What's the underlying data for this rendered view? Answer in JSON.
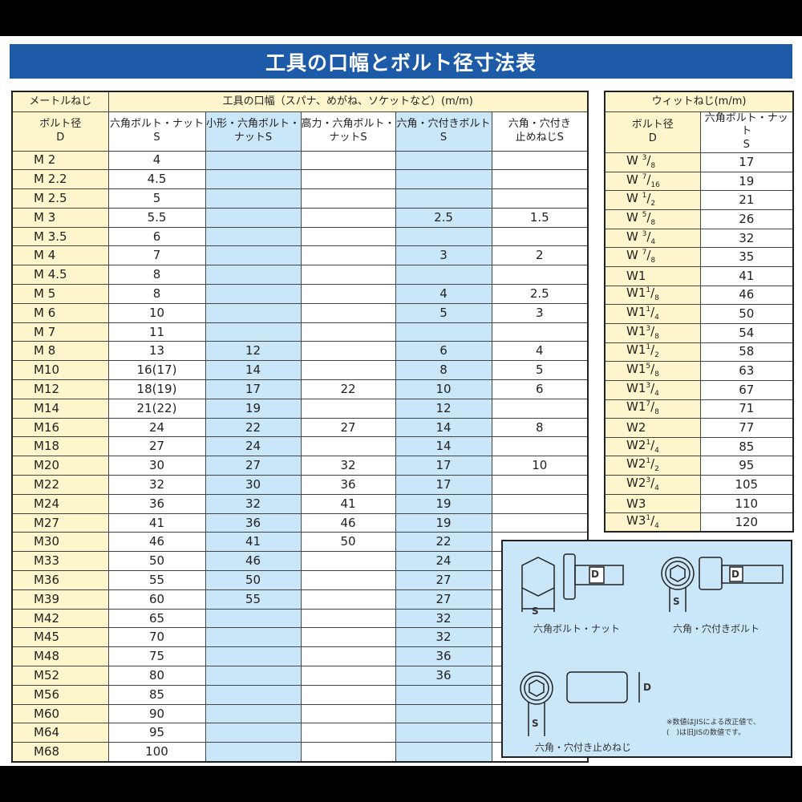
{
  "title": "工具の口幅とボルト径寸法表",
  "metric": {
    "header_group": "メートルねじ",
    "header_span": "工具の口幅（スパナ、めがね、ソケットなど）(m/m)",
    "columns": [
      "ボルト径\nD",
      "六角ボルト・ナット\nS",
      "小形・六角ボルト・\nナットS",
      "高力・六角ボルト・\nナットS",
      "六角・穴付きボルト\nS",
      "六角・穴付き\n止めねじS"
    ],
    "rows": [
      [
        "M 2",
        "4",
        "",
        "",
        "",
        ""
      ],
      [
        "M 2.2",
        "4.5",
        "",
        "",
        "",
        ""
      ],
      [
        "M 2.5",
        "5",
        "",
        "",
        "",
        ""
      ],
      [
        "M 3",
        "5.5",
        "",
        "",
        "2.5",
        "1.5"
      ],
      [
        "M 3.5",
        "6",
        "",
        "",
        "",
        ""
      ],
      [
        "M 4",
        "7",
        "",
        "",
        "3",
        "2"
      ],
      [
        "M 4.5",
        "8",
        "",
        "",
        "",
        ""
      ],
      [
        "M 5",
        "8",
        "",
        "",
        "4",
        "2.5"
      ],
      [
        "M 6",
        "10",
        "",
        "",
        "5",
        "3"
      ],
      [
        "M 7",
        "11",
        "",
        "",
        "",
        ""
      ],
      [
        "M 8",
        "13",
        "12",
        "",
        "6",
        "4"
      ],
      [
        "M10",
        "16(17)",
        "14",
        "",
        "8",
        "5"
      ],
      [
        "M12",
        "18(19)",
        "17",
        "22",
        "10",
        "6"
      ],
      [
        "M14",
        "21(22)",
        "19",
        "",
        "12",
        ""
      ],
      [
        "M16",
        "24",
        "22",
        "27",
        "14",
        "8"
      ],
      [
        "M18",
        "27",
        "24",
        "",
        "14",
        ""
      ],
      [
        "M20",
        "30",
        "27",
        "32",
        "17",
        "10"
      ],
      [
        "M22",
        "32",
        "30",
        "36",
        "17",
        ""
      ],
      [
        "M24",
        "36",
        "32",
        "41",
        "19",
        ""
      ],
      [
        "M27",
        "41",
        "36",
        "46",
        "19",
        ""
      ],
      [
        "M30",
        "46",
        "41",
        "50",
        "22",
        ""
      ],
      [
        "M33",
        "50",
        "46",
        "",
        "24",
        ""
      ],
      [
        "M36",
        "55",
        "50",
        "",
        "27",
        ""
      ],
      [
        "M39",
        "60",
        "55",
        "",
        "27",
        ""
      ],
      [
        "M42",
        "65",
        "",
        "",
        "32",
        ""
      ],
      [
        "M45",
        "70",
        "",
        "",
        "32",
        ""
      ],
      [
        "M48",
        "75",
        "",
        "",
        "36",
        ""
      ],
      [
        "M52",
        "80",
        "",
        "",
        "36",
        ""
      ],
      [
        "M56",
        "85",
        "",
        "",
        "",
        ""
      ],
      [
        "M60",
        "90",
        "",
        "",
        "",
        ""
      ],
      [
        "M64",
        "95",
        "",
        "",
        "",
        ""
      ],
      [
        "M68",
        "100",
        "",
        "",
        "",
        ""
      ]
    ]
  },
  "whitworth": {
    "header": "ウィットねじ(m/m)",
    "columns": [
      "ボルト径\nD",
      "六角ボルト・ナット\nS"
    ],
    "rows": [
      {
        "p": "W ",
        "n": "3",
        "d": "8",
        "s": "17"
      },
      {
        "p": "W ",
        "n": "7",
        "d": "16",
        "s": "19"
      },
      {
        "p": "W ",
        "n": "1",
        "d": "2",
        "s": "21"
      },
      {
        "p": "W ",
        "n": "5",
        "d": "8",
        "s": "26"
      },
      {
        "p": "W ",
        "n": "3",
        "d": "4",
        "s": "32"
      },
      {
        "p": "W ",
        "n": "7",
        "d": "8",
        "s": "35"
      },
      {
        "p": "W1",
        "n": "",
        "d": "",
        "s": "41"
      },
      {
        "p": "W1",
        "n": "1",
        "d": "8",
        "s": "46"
      },
      {
        "p": "W1",
        "n": "1",
        "d": "4",
        "s": "50"
      },
      {
        "p": "W1",
        "n": "3",
        "d": "8",
        "s": "54"
      },
      {
        "p": "W1",
        "n": "1",
        "d": "2",
        "s": "58"
      },
      {
        "p": "W1",
        "n": "5",
        "d": "8",
        "s": "63"
      },
      {
        "p": "W1",
        "n": "3",
        "d": "4",
        "s": "67"
      },
      {
        "p": "W1",
        "n": "7",
        "d": "8",
        "s": "71"
      },
      {
        "p": "W2",
        "n": "",
        "d": "",
        "s": "77"
      },
      {
        "p": "W2",
        "n": "1",
        "d": "4",
        "s": "85"
      },
      {
        "p": "W2",
        "n": "1",
        "d": "2",
        "s": "95"
      },
      {
        "p": "W2",
        "n": "3",
        "d": "4",
        "s": "105"
      },
      {
        "p": "W3",
        "n": "",
        "d": "",
        "s": "110"
      },
      {
        "p": "W3",
        "n": "1",
        "d": "4",
        "s": "120"
      }
    ]
  },
  "diagram": {
    "captions": [
      "六角ボルト・ナット",
      "六角・穴付きボルト",
      "六角・穴付き止めねじ"
    ],
    "labels": {
      "s": "S",
      "d": "D"
    },
    "note": [
      "※数値はJISによる改正値で、",
      "(　)は旧JISの数値です。"
    ]
  },
  "colors": {
    "title_bg": "#1d5ba8",
    "yellow": "#fdf6cc",
    "blue": "#c9e7f8"
  }
}
